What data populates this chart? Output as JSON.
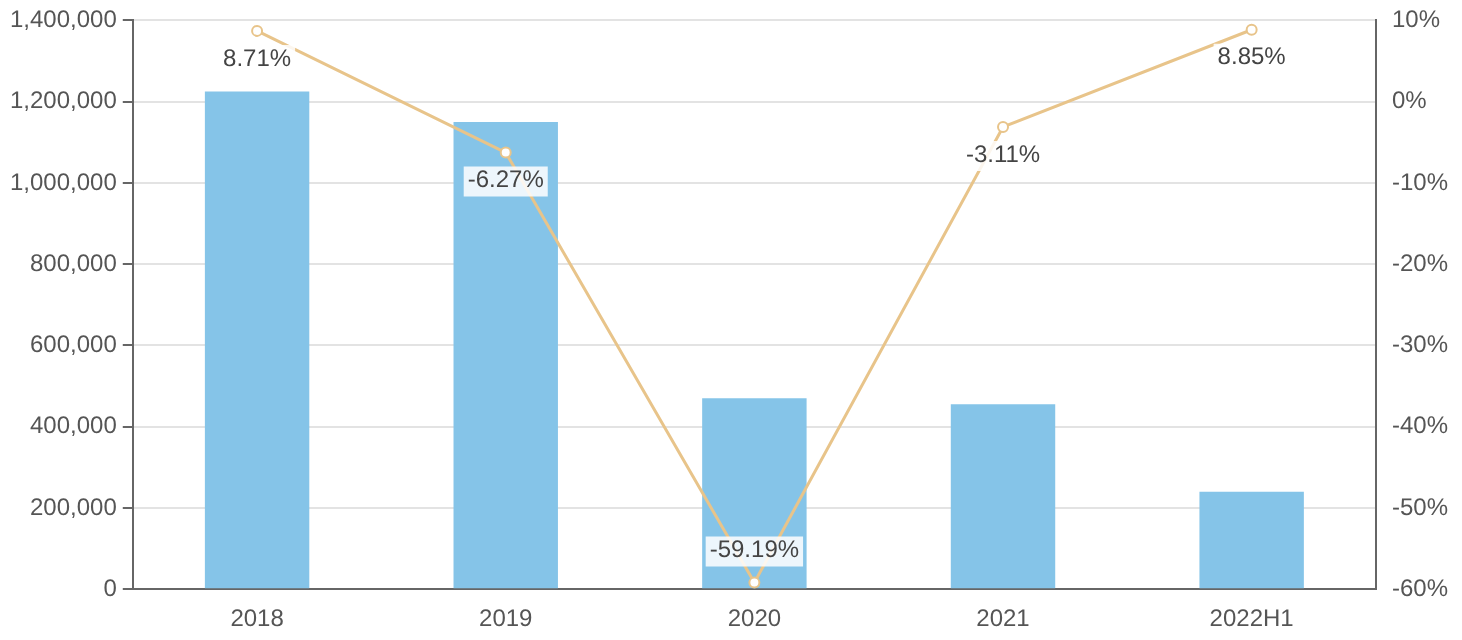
{
  "chart_data": {
    "type": "bar",
    "categories": [
      "2018",
      "2019",
      "2020",
      "2021",
      "2022H1"
    ],
    "series": [
      {
        "color": "#85c4e8",
        "values": [
          1225000,
          1150000,
          470000,
          455000,
          240000
        ]
      },
      {
        "type": "line",
        "axis": "y2",
        "color": "#e8c48a",
        "values": [
          8.71,
          -6.27,
          -59.19,
          -3.11,
          8.85
        ],
        "value_labels": [
          "8.71%",
          "-6.27%",
          "-59.19%",
          "-3.11%",
          "8.85%"
        ]
      }
    ],
    "ylim": [
      0,
      1400000
    ],
    "yticks": [
      {
        "value": 0,
        "label": "0"
      },
      {
        "value": 200000,
        "label": "200,000"
      },
      {
        "value": 400000,
        "label": "400,000"
      },
      {
        "value": 600000,
        "label": "600,000"
      },
      {
        "value": 800000,
        "label": "800,000"
      },
      {
        "value": 1000000,
        "label": "1,000,000"
      },
      {
        "value": 1200000,
        "label": "1,200,000"
      },
      {
        "value": 1400000,
        "label": "1,400,000"
      }
    ],
    "y2lim": [
      -60,
      10
    ],
    "y2ticks": [
      {
        "value": -60,
        "label": "-60%"
      },
      {
        "value": -50,
        "label": "-50%"
      },
      {
        "value": -40,
        "label": "-40%"
      },
      {
        "value": -30,
        "label": "-30%"
      },
      {
        "value": -20,
        "label": "-20%"
      },
      {
        "value": -10,
        "label": "-10%"
      },
      {
        "value": 0,
        "label": "0%"
      },
      {
        "value": 10,
        "label": "10%"
      }
    ],
    "grid": "y",
    "marker": "circle",
    "legend": false
  }
}
